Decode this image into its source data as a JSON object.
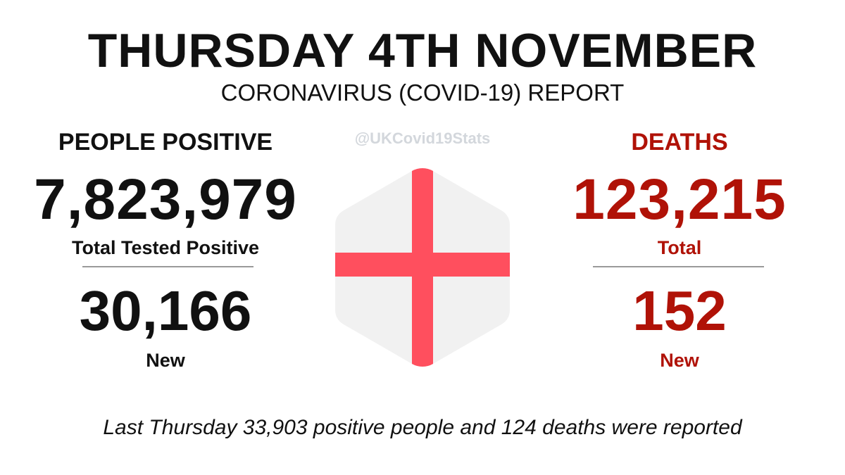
{
  "header": {
    "title": "THURSDAY 4TH NOVEMBER",
    "subtitle": "CORONAVIRUS (COVID-19) REPORT"
  },
  "watermark": "@UKCovid19Stats",
  "positive": {
    "heading": "PEOPLE POSITIVE",
    "total": "7,823,979",
    "total_label": "Total Tested Positive",
    "new": "30,166",
    "new_label": "New"
  },
  "deaths": {
    "heading": "DEATHS",
    "total": "123,215",
    "total_label": "Total",
    "new": "152",
    "new_label": "New"
  },
  "footer": "Last Thursday 33,903 positive people and 124 deaths were reported",
  "colors": {
    "text": "#111111",
    "deaths_red": "#b01207",
    "flag_cross": "#ff4f5e",
    "flag_background": "#f1f1f1",
    "watermark": "#d3d7dc"
  },
  "icons": {
    "flag": "england-flag-hexagon-icon"
  }
}
